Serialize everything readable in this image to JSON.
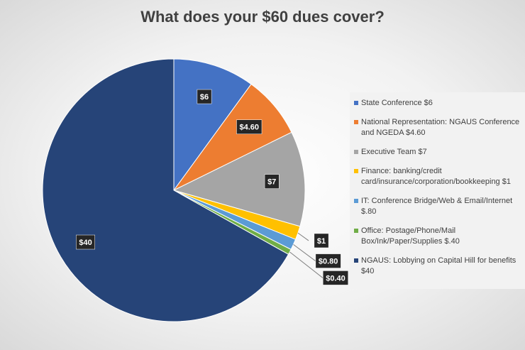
{
  "chart_data": {
    "type": "pie",
    "title": "What does your $60 dues cover?",
    "categories": [
      "State Conference  $6",
      "National Representation: NGAUS Conference and NGEDA  $4.60",
      "Executive Team  $7",
      "Finance: banking/credit card/insurance/corporation/bookkeeping $1",
      "IT: Conference Bridge/Web & Email/Internet $.80",
      "Office: Postage/Phone/Mail Box/Ink/Paper/Supplies  $.40",
      "NGAUS: Lobbying on Capital Hill for benefits $40"
    ],
    "values": [
      6,
      4.6,
      7,
      1,
      0.8,
      0.4,
      40
    ],
    "value_labels": [
      "$6",
      "$4.60",
      "$7",
      "$1",
      "$0.80",
      "$0.40",
      "$40"
    ],
    "colors": [
      "#4472c4",
      "#ed7d31",
      "#a5a5a5",
      "#ffc000",
      "#5b9bd5",
      "#70ad47",
      "#264478"
    ],
    "legend": "right"
  }
}
